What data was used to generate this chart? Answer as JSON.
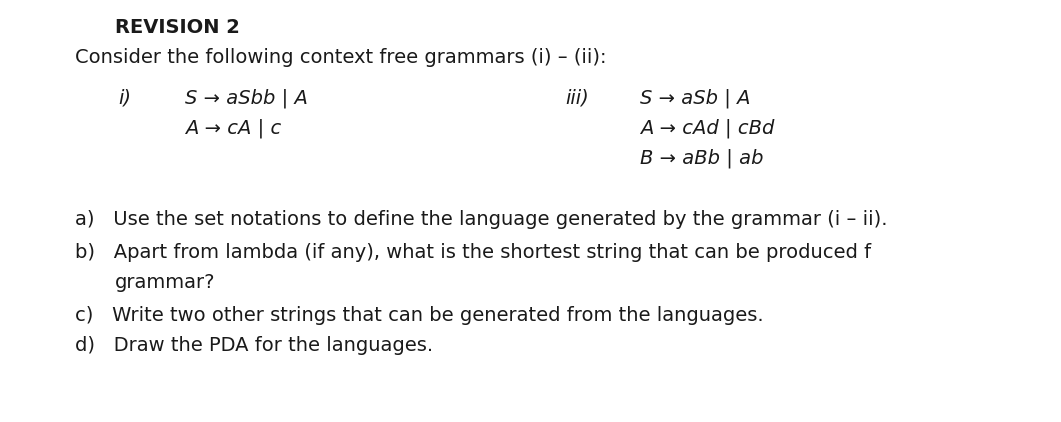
{
  "title": "REVISION 2",
  "line1": "Consider the following context free grammars (i) – (ii):",
  "grammar_i_label": "i)",
  "grammar_i_line1": "S → aSbb | A",
  "grammar_i_line2": "A → cA | c",
  "grammar_iii_label": "iii)",
  "grammar_iii_line1": "S → aSb | A",
  "grammar_iii_line2": "A → cAd | cBd",
  "grammar_iii_line3": "B → aBb | ab",
  "qa": "a)   Use the set notations to define the language generated by the grammar (i – ii).",
  "qb_line1": "b)   Apart from lambda (if any), what is the shortest string that can be produced f",
  "qb_line2": "       grammar?",
  "qc": "c)   Write two other strings that can be generated from the languages.",
  "qd": "d)   Draw the PDA for the languages.",
  "bg_color": "#ffffff",
  "text_color": "#1a1a1a",
  "font_size_title": 14,
  "font_size_body": 14,
  "font_size_grammar": 14
}
